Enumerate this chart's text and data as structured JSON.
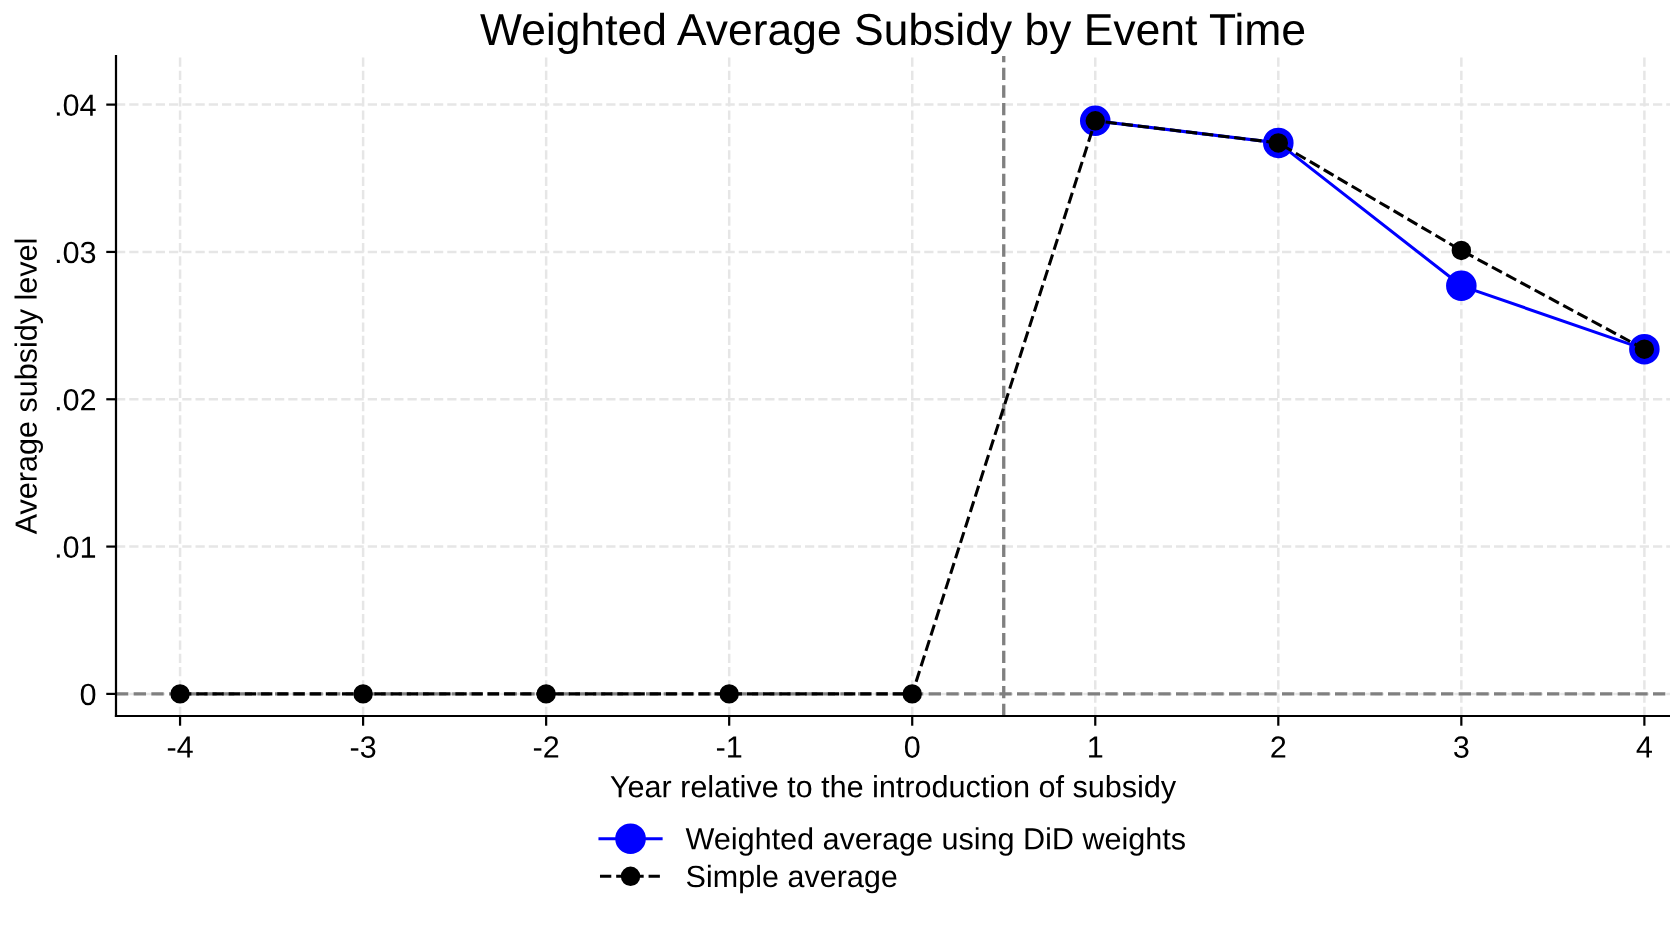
{
  "chart_data": {
    "type": "line",
    "title": "Weighted Average Subsidy by Event Time",
    "xlabel": "Year relative to the introduction of subsidy",
    "ylabel": "Average subsidy level",
    "series": [
      {
        "name": "Weighted average using DiD weights",
        "color": "#0000ff",
        "x": [
          1,
          2,
          3,
          4
        ],
        "values": [
          0.0389,
          0.0374,
          0.0277,
          0.0234
        ],
        "marker": "circle",
        "line_style": "solid"
      },
      {
        "name": "Simple average",
        "color": "#000000",
        "x": [
          -4,
          -3,
          -2,
          -1,
          0,
          1,
          2,
          3,
          4
        ],
        "values": [
          0,
          0,
          0,
          0,
          0,
          0.0389,
          0.0374,
          0.0301,
          0.0234
        ],
        "marker": "circle",
        "line_style": "dashed"
      }
    ],
    "xlim": [
      -4.35,
      4.14
    ],
    "xticks": [
      -4,
      -3,
      -2,
      -1,
      0,
      1,
      2,
      3,
      4
    ],
    "ylim": [
      -0.0015,
      0.0433
    ],
    "yticks": [
      {
        "value": 0,
        "label": "0"
      },
      {
        "value": 0.01,
        "label": ".01"
      },
      {
        "value": 0.02,
        "label": ".02"
      },
      {
        "value": 0.03,
        "label": ".03"
      },
      {
        "value": 0.04,
        "label": ".04"
      }
    ],
    "ref_lines": [
      {
        "axis": "x",
        "value": 0.5,
        "color": "#808080",
        "line_style": "dashed"
      },
      {
        "axis": "y",
        "value": 0,
        "color": "#808080",
        "line_style": "dashed"
      }
    ],
    "grid": true,
    "legend": "bottom"
  }
}
